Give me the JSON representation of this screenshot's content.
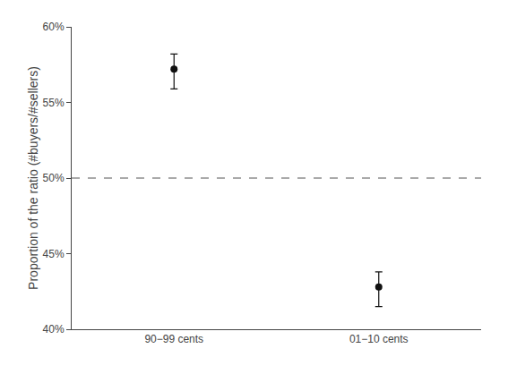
{
  "chart_data": {
    "type": "scatter",
    "categories": [
      "90−99 cents",
      "01−10 cents"
    ],
    "values": [
      0.572,
      0.428
    ],
    "error_upper": [
      0.01,
      0.01
    ],
    "error_lower": [
      0.013,
      0.013
    ],
    "color": "#111111",
    "marker": "circle",
    "reference_lines": [
      {
        "value": 0.5,
        "color": "#555555",
        "line_style": "dashed"
      }
    ],
    "ylabel": "Proportion of the ratio (#buyers/#sellers)",
    "ylim": [
      0.4,
      0.6
    ],
    "yticks": [
      {
        "value": 0.4,
        "label": "40%"
      },
      {
        "value": 0.45,
        "label": "45%"
      },
      {
        "value": 0.5,
        "label": "50%"
      },
      {
        "value": 0.55,
        "label": "55%"
      },
      {
        "value": 0.6,
        "label": "60%"
      }
    ],
    "grid": false
  }
}
